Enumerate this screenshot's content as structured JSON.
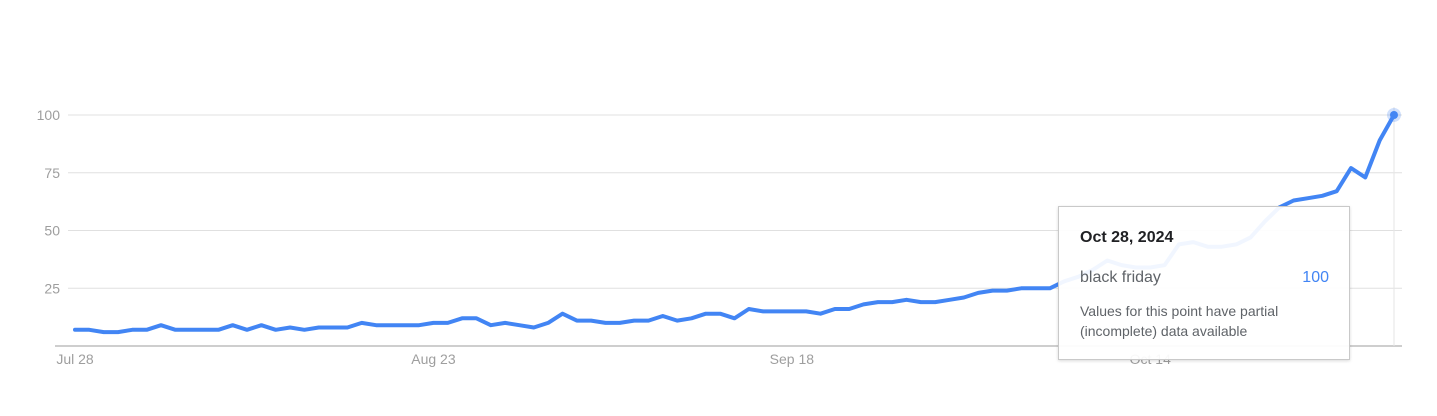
{
  "chart_data": {
    "type": "line",
    "y_ticks": [
      25,
      50,
      75,
      100
    ],
    "ylim": [
      0,
      100
    ],
    "x_tick_labels": [
      "Jul 28",
      "Aug 23",
      "Sep 18",
      "Oct 14"
    ],
    "grid": true,
    "series": [
      {
        "name": "black friday",
        "color": "#4285f4",
        "values": [
          7,
          7,
          6,
          6,
          7,
          7,
          9,
          7,
          7,
          7,
          7,
          9,
          7,
          9,
          7,
          8,
          7,
          8,
          8,
          8,
          10,
          9,
          9,
          9,
          9,
          10,
          10,
          12,
          12,
          9,
          10,
          9,
          8,
          10,
          14,
          11,
          11,
          10,
          10,
          11,
          11,
          13,
          11,
          12,
          14,
          14,
          12,
          16,
          15,
          15,
          15,
          15,
          14,
          16,
          16,
          18,
          19,
          19,
          20,
          19,
          19,
          20,
          21,
          23,
          24,
          24,
          25,
          25,
          25,
          28,
          30,
          33,
          37,
          35,
          34,
          34,
          35,
          44,
          45,
          43,
          43,
          44,
          47,
          54,
          60,
          63,
          64,
          65,
          67,
          77,
          73,
          89,
          100
        ]
      }
    ]
  },
  "tooltip": {
    "date": "Oct 28, 2024",
    "series_name": "black friday",
    "value": "100",
    "note": "Values for this point have partial (incomplete) data available"
  }
}
